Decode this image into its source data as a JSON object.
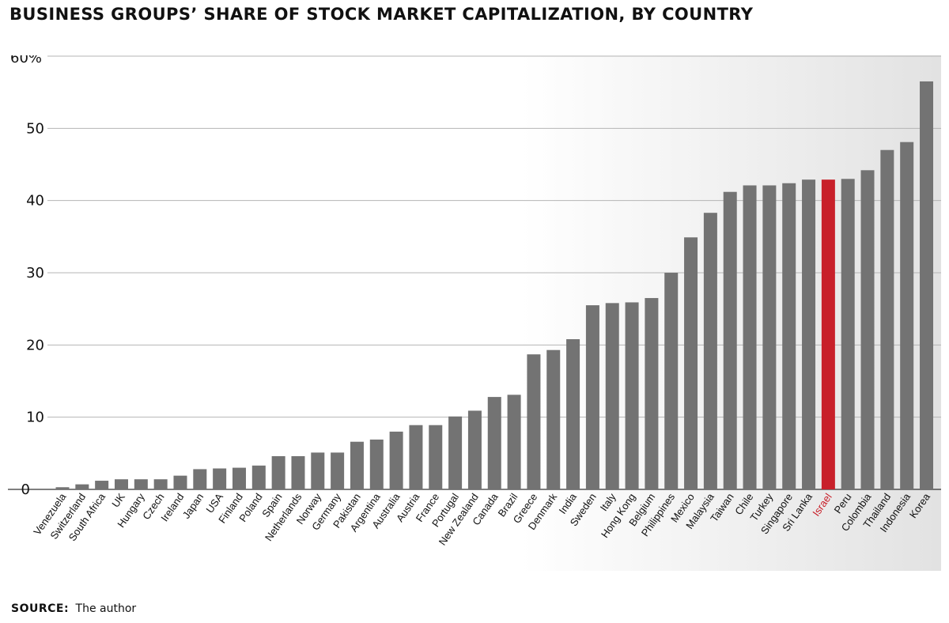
{
  "title": "BUSINESS GROUPS’ SHARE OF STOCK MARKET CAPITALIZATION, BY COUNTRY",
  "source": {
    "label": "SOURCE:",
    "text": "The author"
  },
  "colors": {
    "bar": "#737373",
    "highlight": "#c8202a",
    "grid": "#b5b5b5"
  },
  "chart_data": {
    "type": "bar",
    "title": "BUSINESS GROUPS’ SHARE OF STOCK MARKET CAPITALIZATION, BY COUNTRY",
    "xlabel": "",
    "ylabel": "",
    "ylim": [
      0,
      60
    ],
    "yticks": [
      0,
      10,
      20,
      30,
      40,
      50,
      60
    ],
    "ytick_labels": [
      "0",
      "10",
      "20",
      "30",
      "40",
      "50",
      "60%"
    ],
    "grid": true,
    "highlight_category": "Israel",
    "categories": [
      "Venezuela",
      "Switzerland",
      "South Africa",
      "UK",
      "Hungary",
      "Czech",
      "Ireland",
      "Japan",
      "USA",
      "Finland",
      "Poland",
      "Spain",
      "Netherlands",
      "Norway",
      "Germany",
      "Pakistan",
      "Argentina",
      "Australia",
      "Austria",
      "France",
      "Portugal",
      "New Zealand",
      "Canada",
      "Brazil",
      "Greece",
      "Denmark",
      "India",
      "Sweden",
      "Italy",
      "Hong Kong",
      "Belgium",
      "Philippines",
      "Mexico",
      "Malaysia",
      "Taiwan",
      "Chile",
      "Turkey",
      "Singapore",
      "Sri Lanka",
      "Israel",
      "Peru",
      "Colombia",
      "Thailand",
      "Indonesia",
      "Korea"
    ],
    "values": [
      0.3,
      0.7,
      1.2,
      1.4,
      1.4,
      1.4,
      1.9,
      2.8,
      2.9,
      3.0,
      3.3,
      4.6,
      4.6,
      5.1,
      5.1,
      6.6,
      6.9,
      8.0,
      8.9,
      8.9,
      10.1,
      10.9,
      12.8,
      13.1,
      18.7,
      19.3,
      20.8,
      25.5,
      25.8,
      25.9,
      26.5,
      30.0,
      34.9,
      38.3,
      41.2,
      42.1,
      42.1,
      42.4,
      42.9,
      42.9,
      43.0,
      44.2,
      47.0,
      48.1,
      56.5
    ]
  }
}
